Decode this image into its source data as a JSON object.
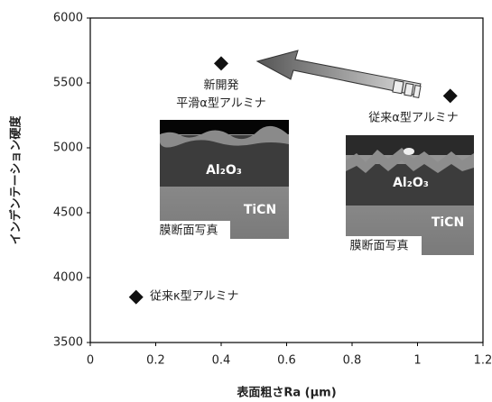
{
  "chart_data": {
    "type": "scatter",
    "x_label": "表面粗さRa (μm)",
    "y_label": "インデンテーション硬度",
    "xlim": [
      0,
      1.2
    ],
    "xticks": [
      0,
      0.2,
      0.4,
      0.6,
      0.8,
      1,
      1.2
    ],
    "ylim": [
      3500,
      6000
    ],
    "yticks": [
      3500,
      4000,
      4500,
      5000,
      5500,
      6000
    ],
    "grid": false,
    "series": [
      {
        "color": "#111111",
        "x": [
          0.4,
          1.1,
          0.14
        ],
        "values": [
          5650,
          5400,
          3850
        ]
      }
    ],
    "annotations": [
      "新開発",
      "平滑α型アルミナ",
      "従来α型アルミナ",
      "従来κ型アルミナ"
    ],
    "insets": [
      {
        "layers": [
          "Al₂O₃",
          "TiCN"
        ],
        "caption": "膜断面写真"
      },
      {
        "layers": [
          "Al₂O₃",
          "TiCN"
        ],
        "caption": "膜断面写真"
      }
    ]
  }
}
